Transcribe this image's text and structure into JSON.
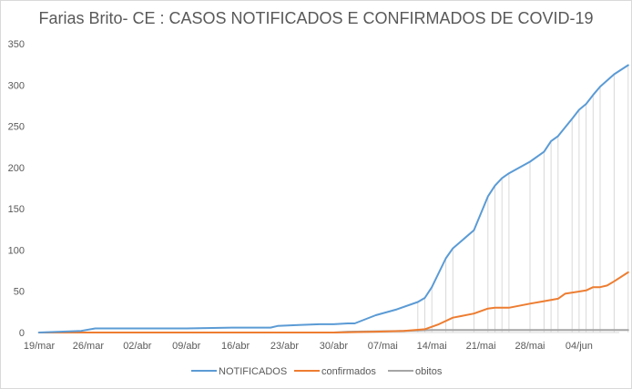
{
  "chart_data": {
    "type": "line",
    "title": "Farias Brito- CE : CASOS NOTIFICADOS E CONFIRMADOS DE COVID-19",
    "xlabel": "",
    "ylabel": "",
    "ylim": [
      0,
      350
    ],
    "y_ticks": [
      "0",
      "50",
      "100",
      "150",
      "200",
      "250",
      "300",
      "350"
    ],
    "x_ticks": [
      "19/mar",
      "26/mar",
      "02/abr",
      "09/abr",
      "16/abr",
      "23/abr",
      "30/abr",
      "07/mai",
      "14/mai",
      "21/mai",
      "28/mai",
      "04/jun"
    ],
    "x_start": "2020-03-19",
    "x_end": "2020-06-07",
    "grid": "vertical drop lines from 12/mai",
    "legend_position": "bottom",
    "series": [
      {
        "name": "NOTIFICADOS",
        "color": "#5b9bd5",
        "points": [
          [
            "2020-03-19",
            0
          ],
          [
            "2020-03-25",
            2
          ],
          [
            "2020-03-27",
            5
          ],
          [
            "2020-04-02",
            5
          ],
          [
            "2020-04-09",
            5
          ],
          [
            "2020-04-16",
            6
          ],
          [
            "2020-04-21",
            6
          ],
          [
            "2020-04-22",
            8
          ],
          [
            "2020-04-25",
            9
          ],
          [
            "2020-04-28",
            10
          ],
          [
            "2020-04-30",
            10
          ],
          [
            "2020-05-02",
            11
          ],
          [
            "2020-05-03",
            11
          ],
          [
            "2020-05-06",
            21
          ],
          [
            "2020-05-09",
            28
          ],
          [
            "2020-05-12",
            37
          ],
          [
            "2020-05-13",
            42
          ],
          [
            "2020-05-14",
            55
          ],
          [
            "2020-05-16",
            90
          ],
          [
            "2020-05-17",
            102
          ],
          [
            "2020-05-20",
            124
          ],
          [
            "2020-05-22",
            165
          ],
          [
            "2020-05-23",
            178
          ],
          [
            "2020-05-24",
            187
          ],
          [
            "2020-05-25",
            193
          ],
          [
            "2020-05-28",
            207
          ],
          [
            "2020-05-30",
            219
          ],
          [
            "2020-05-31",
            232
          ],
          [
            "2020-06-01",
            238
          ],
          [
            "2020-06-03",
            259
          ],
          [
            "2020-06-04",
            270
          ],
          [
            "2020-06-05",
            277
          ],
          [
            "2020-06-06",
            288
          ],
          [
            "2020-06-07",
            298
          ],
          [
            "2020-06-09",
            313
          ],
          [
            "2020-06-11",
            324
          ]
        ]
      },
      {
        "name": "confirmados",
        "color": "#ed7d31",
        "points": [
          [
            "2020-03-19",
            0
          ],
          [
            "2020-04-30",
            0
          ],
          [
            "2020-05-06",
            1
          ],
          [
            "2020-05-10",
            2
          ],
          [
            "2020-05-13",
            4
          ],
          [
            "2020-05-15",
            10
          ],
          [
            "2020-05-17",
            18
          ],
          [
            "2020-05-20",
            23
          ],
          [
            "2020-05-22",
            29
          ],
          [
            "2020-05-23",
            30
          ],
          [
            "2020-05-25",
            30
          ],
          [
            "2020-05-28",
            35
          ],
          [
            "2020-05-30",
            38
          ],
          [
            "2020-06-01",
            41
          ],
          [
            "2020-06-02",
            47
          ],
          [
            "2020-06-05",
            51
          ],
          [
            "2020-06-06",
            55
          ],
          [
            "2020-06-07",
            55
          ],
          [
            "2020-06-08",
            57
          ],
          [
            "2020-06-09",
            62
          ],
          [
            "2020-06-11",
            73
          ]
        ]
      },
      {
        "name": "obitos",
        "color": "#a5a5a5",
        "points": [
          [
            "2020-03-19",
            0
          ],
          [
            "2020-04-30",
            0
          ],
          [
            "2020-05-02",
            1
          ],
          [
            "2020-05-10",
            2
          ],
          [
            "2020-05-14",
            3
          ],
          [
            "2020-06-11",
            3
          ]
        ]
      }
    ]
  }
}
